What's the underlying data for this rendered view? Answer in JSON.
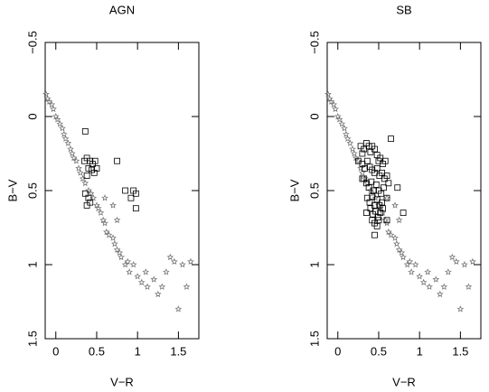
{
  "chart_data": [
    {
      "type": "scatter",
      "title": "AGN",
      "x_label": "V−R",
      "y_label": "B−V",
      "xlim": [
        -0.13,
        1.75
      ],
      "ylim": [
        -0.5,
        1.5
      ],
      "y_inverted": true,
      "xticks": [
        0,
        0.5,
        1,
        1.5
      ],
      "yticks": [
        {
          "value": -0.5,
          "label": "−0.5"
        },
        0,
        0.5,
        1,
        1.5
      ],
      "series": [
        {
          "marker": "star",
          "color": "#777777",
          "x": [
            -0.12,
            -0.1,
            -0.08,
            -0.05,
            -0.03,
            0,
            0.02,
            0.05,
            0.08,
            0.1,
            0.12,
            0.15,
            0.18,
            0.2,
            0.22,
            0.25,
            0.28,
            0.3,
            0.33,
            0.36,
            0.4,
            0.43,
            0.46,
            0.5,
            0.52,
            0.55,
            0.58,
            0.6,
            0.62,
            0.65,
            0.7,
            0.72,
            0.75,
            0.78,
            0.8,
            0.85,
            0.88,
            0.9,
            0.95,
            1.0,
            1.05,
            1.1,
            1.12,
            1.2,
            1.25,
            1.3,
            1.35,
            1.4,
            1.45,
            1.5,
            1.55,
            1.6,
            1.65,
            0.6,
            0.7,
            0.75
          ],
          "y": [
            -0.15,
            -0.12,
            -0.1,
            -0.08,
            -0.05,
            0,
            0.02,
            0.05,
            0.08,
            0.12,
            0.15,
            0.18,
            0.22,
            0.25,
            0.28,
            0.3,
            0.35,
            0.38,
            0.42,
            0.45,
            0.5,
            0.52,
            0.55,
            0.6,
            0.62,
            0.65,
            0.7,
            0.72,
            0.78,
            0.8,
            0.82,
            0.86,
            0.9,
            0.92,
            0.95,
            1.0,
            0.98,
            1.05,
            1.0,
            1.08,
            1.12,
            1.05,
            1.15,
            1.1,
            1.2,
            1.15,
            1.05,
            0.95,
            0.98,
            1.3,
            1.0,
            1.15,
            0.98,
            0.55,
            0.6,
            0.7
          ]
        },
        {
          "marker": "square",
          "color": "#000000",
          "x": [
            0.35,
            0.38,
            0.42,
            0.45,
            0.48,
            0.4,
            0.44,
            0.47,
            0.38,
            0.5,
            0.36,
            0.75,
            0.36,
            0.4,
            0.42,
            0.38,
            0.95,
            0.98,
            0.92,
            0.98,
            0.85
          ],
          "y": [
            0.3,
            0.28,
            0.3,
            0.32,
            0.3,
            0.35,
            0.36,
            0.38,
            0.4,
            0.35,
            0.1,
            0.3,
            0.52,
            0.55,
            0.58,
            0.6,
            0.5,
            0.52,
            0.55,
            0.62,
            0.5
          ]
        }
      ]
    },
    {
      "type": "scatter",
      "title": "SB",
      "x_label": "V−R",
      "y_label": "B−V",
      "xlim": [
        -0.13,
        1.75
      ],
      "ylim": [
        -0.5,
        1.5
      ],
      "y_inverted": true,
      "xticks": [
        0,
        0.5,
        1,
        1.5
      ],
      "yticks": [
        {
          "value": -0.5,
          "label": "−0.5"
        },
        0,
        0.5,
        1,
        1.5
      ],
      "series": [
        {
          "marker": "star",
          "color": "#777777",
          "x": [
            -0.12,
            -0.1,
            -0.08,
            -0.05,
            -0.03,
            0,
            0.02,
            0.05,
            0.08,
            0.1,
            0.12,
            0.15,
            0.18,
            0.2,
            0.22,
            0.25,
            0.28,
            0.3,
            0.33,
            0.36,
            0.4,
            0.43,
            0.46,
            0.5,
            0.52,
            0.55,
            0.58,
            0.6,
            0.62,
            0.65,
            0.7,
            0.72,
            0.75,
            0.78,
            0.8,
            0.85,
            0.88,
            0.9,
            0.95,
            1.0,
            1.05,
            1.1,
            1.12,
            1.2,
            1.25,
            1.3,
            1.35,
            1.4,
            1.45,
            1.5,
            1.55,
            1.6,
            1.65,
            0.6,
            0.7,
            0.75
          ],
          "y": [
            -0.15,
            -0.12,
            -0.1,
            -0.08,
            -0.05,
            0,
            0.02,
            0.05,
            0.08,
            0.12,
            0.15,
            0.18,
            0.22,
            0.25,
            0.28,
            0.3,
            0.35,
            0.38,
            0.42,
            0.45,
            0.5,
            0.52,
            0.55,
            0.6,
            0.62,
            0.65,
            0.7,
            0.72,
            0.78,
            0.8,
            0.82,
            0.86,
            0.9,
            0.92,
            0.95,
            1.0,
            0.98,
            1.05,
            1.0,
            1.08,
            1.12,
            1.05,
            1.15,
            1.1,
            1.2,
            1.15,
            1.05,
            0.95,
            0.98,
            1.3,
            1.0,
            1.15,
            0.98,
            0.55,
            0.6,
            0.7
          ]
        },
        {
          "marker": "square",
          "color": "#000000",
          "x": [
            0.28,
            0.3,
            0.32,
            0.35,
            0.38,
            0.4,
            0.42,
            0.45,
            0.48,
            0.5,
            0.52,
            0.55,
            0.3,
            0.33,
            0.36,
            0.39,
            0.42,
            0.45,
            0.48,
            0.51,
            0.54,
            0.57,
            0.6,
            0.32,
            0.35,
            0.38,
            0.41,
            0.44,
            0.47,
            0.5,
            0.53,
            0.56,
            0.36,
            0.39,
            0.42,
            0.45,
            0.48,
            0.51,
            0.54,
            0.4,
            0.43,
            0.46,
            0.49,
            0.52,
            0.42,
            0.45,
            0.48,
            0.5,
            0.55,
            0.6,
            0.62,
            0.58,
            0.35,
            0.3,
            0.25,
            0.65,
            0.73,
            0.8,
            0.45,
            0.6
          ],
          "y": [
            0.2,
            0.25,
            0.22,
            0.18,
            0.2,
            0.24,
            0.2,
            0.22,
            0.26,
            0.3,
            0.28,
            0.32,
            0.32,
            0.35,
            0.3,
            0.34,
            0.36,
            0.38,
            0.35,
            0.4,
            0.38,
            0.42,
            0.4,
            0.42,
            0.45,
            0.48,
            0.44,
            0.5,
            0.46,
            0.5,
            0.52,
            0.48,
            0.55,
            0.58,
            0.54,
            0.6,
            0.56,
            0.6,
            0.58,
            0.62,
            0.66,
            0.64,
            0.68,
            0.65,
            0.7,
            0.72,
            0.74,
            0.7,
            0.62,
            0.55,
            0.45,
            0.3,
            0.65,
            0.42,
            0.3,
            0.15,
            0.48,
            0.65,
            0.8,
            0.7
          ]
        }
      ]
    }
  ]
}
